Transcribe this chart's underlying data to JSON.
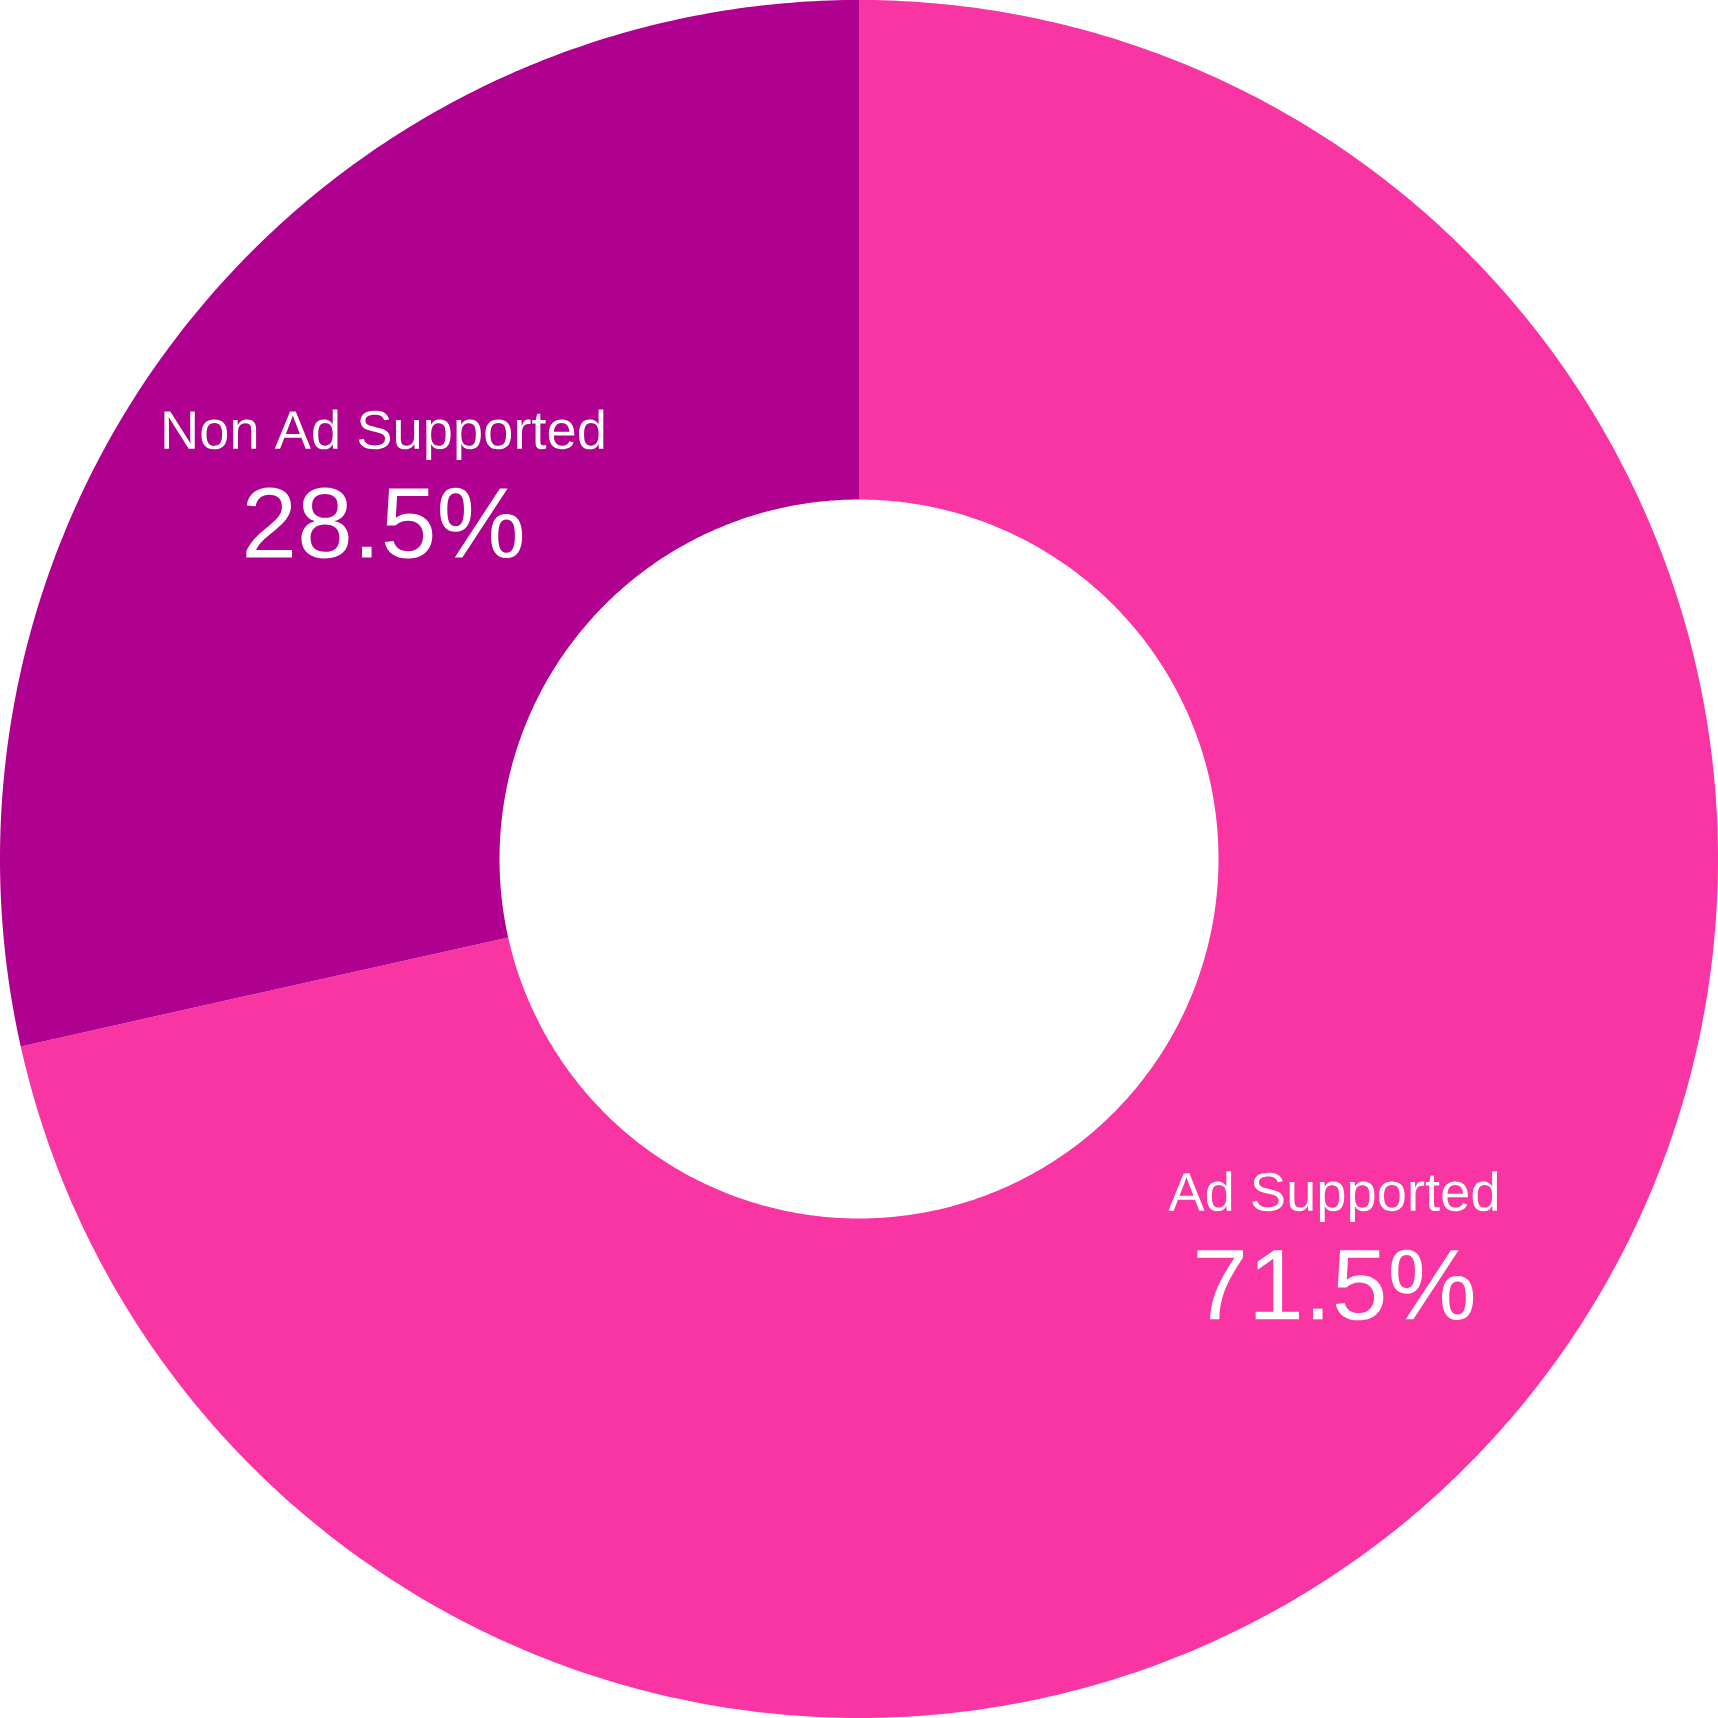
{
  "chart_data": {
    "type": "donut",
    "categories": [
      "Ad Supported",
      "Non Ad Supported"
    ],
    "values": [
      71.5,
      28.5
    ],
    "colors": [
      "#f935a3",
      "#b0008f"
    ],
    "value_labels": [
      "71.5%",
      "28.5%"
    ]
  }
}
